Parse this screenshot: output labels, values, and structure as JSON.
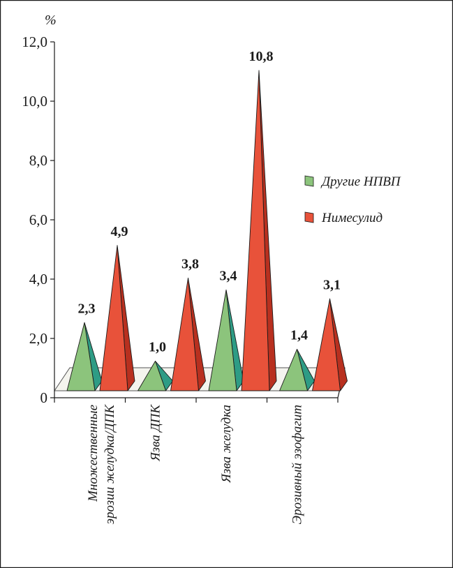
{
  "chart_data": {
    "type": "bar",
    "style": "3d-pyramid",
    "unit": "%",
    "categories": [
      [
        "Множественные",
        "эрозии желудка/ДПК"
      ],
      [
        "Язва ДПК"
      ],
      [
        "Язва желудка"
      ],
      [
        "Эрозивный эзофагит"
      ]
    ],
    "series": [
      {
        "name": "Другие НПВП",
        "values": [
          2.3,
          1.0,
          3.4,
          1.4
        ],
        "labels": [
          "2,3",
          "1,0",
          "3,4",
          "1,4"
        ],
        "color": "#8cc47c",
        "shade": "#2e9c85"
      },
      {
        "name": "Нимесулид",
        "values": [
          4.9,
          3.8,
          10.8,
          3.1
        ],
        "labels": [
          "4,9",
          "3,8",
          "10,8",
          "3,1"
        ],
        "color": "#e8523a",
        "shade": "#b8301f"
      }
    ],
    "yticks": [
      "0",
      "2,0",
      "4,0",
      "6,0",
      "8,0",
      "10,0",
      "12,0"
    ],
    "ylim": [
      0,
      12
    ],
    "grid": false,
    "legend_position": "right"
  }
}
